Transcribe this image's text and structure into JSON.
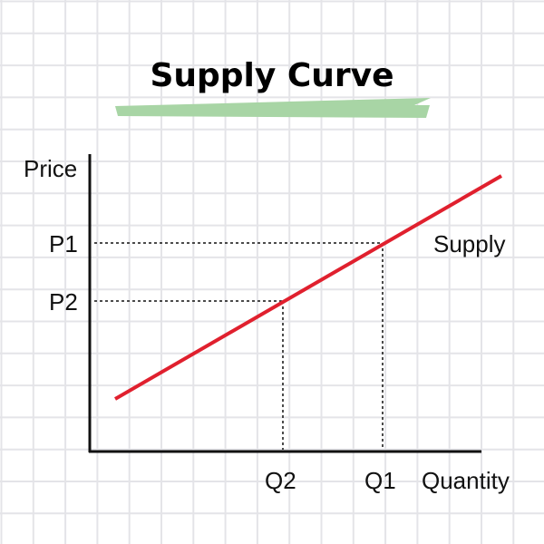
{
  "chart_data": {
    "type": "line",
    "title": "Supply Curve",
    "ylabel": "Price",
    "xlabel": "Quantity",
    "series": [
      {
        "name": "Supply"
      }
    ],
    "y_ticks": [
      "P1",
      "P2"
    ],
    "x_ticks": [
      "Q2",
      "Q1"
    ],
    "points": [
      {
        "price": "P2",
        "quantity": "Q2"
      },
      {
        "price": "P1",
        "quantity": "Q1"
      }
    ],
    "grid": true,
    "colors": {
      "curve": "#e0202e",
      "highlight": "#a8d5a5",
      "grid": "#e4e4e8",
      "axis": "#111111"
    }
  }
}
